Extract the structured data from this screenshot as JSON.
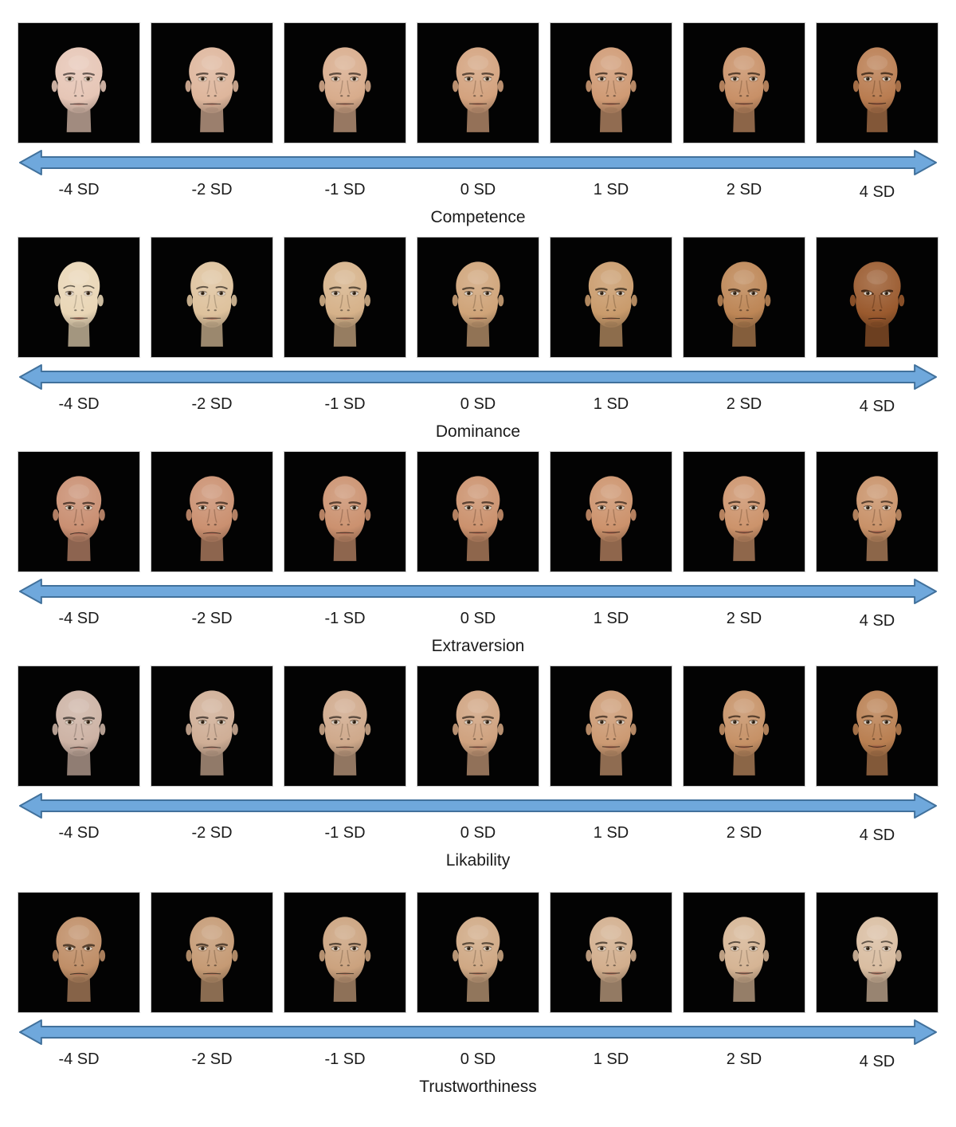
{
  "figure": {
    "sd_labels": [
      "-4 SD",
      "-2 SD",
      "-1 SD",
      "0 SD",
      "1 SD",
      "2 SD",
      "4 SD"
    ],
    "arrow": {
      "fill": "#6fa8dc",
      "stroke": "#41719c"
    },
    "tile_background": "#000000",
    "rows": [
      {
        "title": "Competence",
        "faces": [
          {
            "sd": "-4 SD",
            "skin": "#e6c6b6",
            "width": 1.08,
            "smile": -0.1,
            "brow": 0.05,
            "fem": 0.3
          },
          {
            "sd": "-2 SD",
            "skin": "#deb69c",
            "width": 1.05,
            "smile": -0.05,
            "brow": 0.05,
            "fem": 0.25
          },
          {
            "sd": "-1 SD",
            "skin": "#d8ac8c",
            "width": 1.02,
            "smile": 0.0,
            "brow": 0.05,
            "fem": 0.25
          },
          {
            "sd": "0 SD",
            "skin": "#d3a27e",
            "width": 1.0,
            "smile": 0.05,
            "brow": 0.05,
            "fem": 0.2
          },
          {
            "sd": "1 SD",
            "skin": "#cf9a74",
            "width": 0.99,
            "smile": 0.1,
            "brow": 0.1,
            "fem": 0.2
          },
          {
            "sd": "2 SD",
            "skin": "#c89067",
            "width": 0.97,
            "smile": 0.15,
            "brow": 0.1,
            "fem": 0.2
          },
          {
            "sd": "4 SD",
            "skin": "#b97c50",
            "width": 0.93,
            "smile": 0.25,
            "brow": 0.15,
            "fem": 0.2
          }
        ]
      },
      {
        "title": "Dominance",
        "faces": [
          {
            "sd": "-4 SD",
            "skin": "#e9d6b6",
            "width": 0.96,
            "smile": 0.05,
            "brow": 0.55,
            "fem": 0.9
          },
          {
            "sd": "-2 SD",
            "skin": "#dec29d",
            "width": 0.98,
            "smile": 0.02,
            "brow": 0.3,
            "fem": 0.6
          },
          {
            "sd": "-1 SD",
            "skin": "#d6b28a",
            "width": 1.0,
            "smile": 0.0,
            "brow": 0.15,
            "fem": 0.4
          },
          {
            "sd": "0 SD",
            "skin": "#cfa479",
            "width": 1.01,
            "smile": 0.0,
            "brow": 0.0,
            "fem": 0.3
          },
          {
            "sd": "1 SD",
            "skin": "#c99b6c",
            "width": 1.03,
            "smile": -0.05,
            "brow": -0.2,
            "fem": 0.2
          },
          {
            "sd": "2 SD",
            "skin": "#bd8656",
            "width": 1.05,
            "smile": -0.1,
            "brow": -0.45,
            "fem": 0.1
          },
          {
            "sd": "4 SD",
            "skin": "#9a5a2e",
            "width": 1.08,
            "smile": -0.2,
            "brow": -0.9,
            "fem": 0.0
          }
        ]
      },
      {
        "title": "Extraversion",
        "faces": [
          {
            "sd": "-4 SD",
            "skin": "#c98f72",
            "width": 1.03,
            "smile": -0.5,
            "brow": -0.1,
            "fem": 0.2
          },
          {
            "sd": "-2 SD",
            "skin": "#ca9070",
            "width": 1.02,
            "smile": -0.3,
            "brow": -0.05,
            "fem": 0.2
          },
          {
            "sd": "-1 SD",
            "skin": "#cb916f",
            "width": 1.01,
            "smile": -0.12,
            "brow": 0.0,
            "fem": 0.25
          },
          {
            "sd": "0 SD",
            "skin": "#cb916d",
            "width": 1.0,
            "smile": 0.05,
            "brow": 0.05,
            "fem": 0.25
          },
          {
            "sd": "1 SD",
            "skin": "#cc926c",
            "width": 0.99,
            "smile": 0.25,
            "brow": 0.1,
            "fem": 0.3
          },
          {
            "sd": "2 SD",
            "skin": "#cc936b",
            "width": 0.97,
            "smile": 0.45,
            "brow": 0.15,
            "fem": 0.35
          },
          {
            "sd": "4 SD",
            "skin": "#c89168",
            "width": 0.95,
            "smile": 0.65,
            "brow": 0.25,
            "fem": 0.4
          }
        ]
      },
      {
        "title": "Likability",
        "faces": [
          {
            "sd": "-4 SD",
            "skin": "#cdb3a5",
            "width": 1.05,
            "smile": -0.4,
            "brow": -0.25,
            "fem": 0.1
          },
          {
            "sd": "-2 SD",
            "skin": "#cfae96",
            "width": 1.03,
            "smile": -0.22,
            "brow": -0.12,
            "fem": 0.15
          },
          {
            "sd": "-1 SD",
            "skin": "#cfa98b",
            "width": 1.01,
            "smile": -0.1,
            "brow": -0.05,
            "fem": 0.2
          },
          {
            "sd": "0 SD",
            "skin": "#cfa27f",
            "width": 1.0,
            "smile": 0.02,
            "brow": 0.0,
            "fem": 0.2
          },
          {
            "sd": "1 SD",
            "skin": "#cc9a73",
            "width": 0.99,
            "smile": 0.15,
            "brow": 0.08,
            "fem": 0.25
          },
          {
            "sd": "2 SD",
            "skin": "#c69166",
            "width": 0.97,
            "smile": 0.3,
            "brow": 0.15,
            "fem": 0.3
          },
          {
            "sd": "4 SD",
            "skin": "#b97f51",
            "width": 0.95,
            "smile": 0.5,
            "brow": 0.22,
            "fem": 0.35
          }
        ]
      },
      {
        "title": "Trustworthiness",
        "faces": [
          {
            "sd": "-4 SD",
            "skin": "#bf8e67",
            "width": 1.04,
            "smile": -0.3,
            "brow": -0.6,
            "fem": 0.0
          },
          {
            "sd": "-2 SD",
            "skin": "#c59a74",
            "width": 1.02,
            "smile": -0.15,
            "brow": -0.35,
            "fem": 0.1
          },
          {
            "sd": "-1 SD",
            "skin": "#cba27e",
            "width": 1.01,
            "smile": -0.05,
            "brow": -0.15,
            "fem": 0.2
          },
          {
            "sd": "0 SD",
            "skin": "#cfa884",
            "width": 1.0,
            "smile": 0.05,
            "brow": 0.0,
            "fem": 0.3
          },
          {
            "sd": "1 SD",
            "skin": "#d2ae8d",
            "width": 0.99,
            "smile": 0.15,
            "brow": 0.15,
            "fem": 0.4
          },
          {
            "sd": "2 SD",
            "skin": "#d5b494",
            "width": 0.97,
            "smile": 0.25,
            "brow": 0.3,
            "fem": 0.55
          },
          {
            "sd": "4 SD",
            "skin": "#d9bda1",
            "width": 0.95,
            "smile": 0.35,
            "brow": 0.45,
            "fem": 0.7
          }
        ]
      }
    ]
  }
}
